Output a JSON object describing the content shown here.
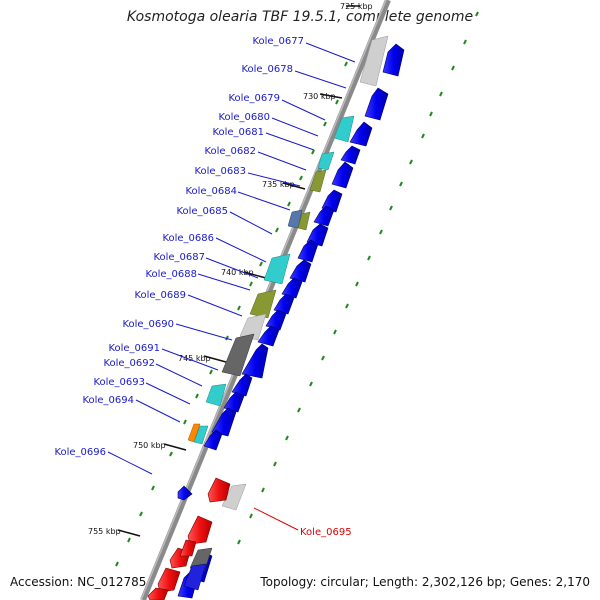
{
  "title": "Kosmotoga olearia TBF 19.5.1, complete genome",
  "footer": {
    "accession": "Accession: NC_012785",
    "topology": "Topology: circular; Length: 2,302,126 bp; Genes: 2,170"
  },
  "ticks": [
    "725 kbp",
    "730 kbp",
    "735 kbp",
    "740 kbp",
    "745 kbp",
    "750 kbp",
    "755 kbp"
  ],
  "gene_labels": [
    "Kole_0677",
    "Kole_0678",
    "Kole_0679",
    "Kole_0680",
    "Kole_0681",
    "Kole_0682",
    "Kole_0683",
    "Kole_0684",
    "Kole_0685",
    "Kole_0686",
    "Kole_0687",
    "Kole_0688",
    "Kole_0689",
    "Kole_0690",
    "Kole_0691",
    "Kole_0692",
    "Kole_0693",
    "Kole_0694",
    "Kole_0696"
  ],
  "highlight_label": "Kole_0695",
  "colors": {
    "label": "#1a1acc",
    "highlight": "#dd0000",
    "forward_gene": "#0000ee",
    "reverse_gene": "#ee1111",
    "backbone": "#8a8a8a",
    "dots": "#1b8a1b",
    "cyan": "#33cccc",
    "olive": "#889933",
    "gray_light": "#cfcfcf",
    "gray_dark": "#666666",
    "orange": "#ff8800",
    "steel": "#5577aa"
  }
}
